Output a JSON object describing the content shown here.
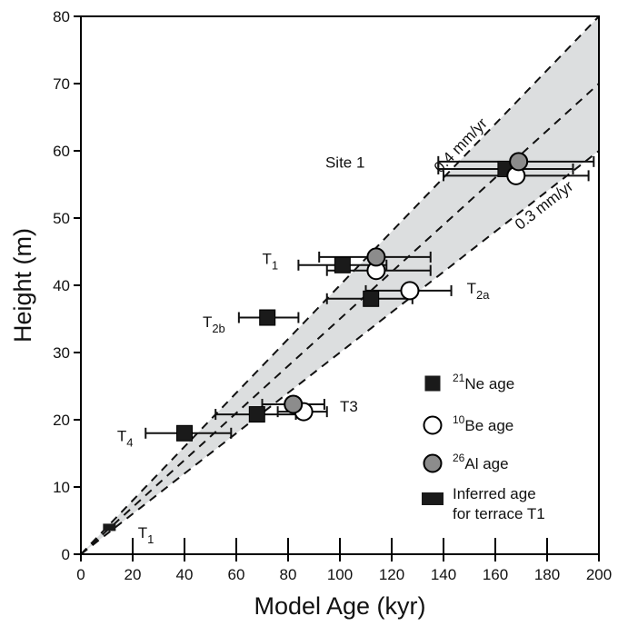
{
  "chart_data": {
    "type": "scatter",
    "xlabel": "Model Age (kyr)",
    "ylabel": "Height (m)",
    "xlim": [
      0,
      200
    ],
    "ylim": [
      0,
      80
    ],
    "xticks": [
      0,
      20,
      40,
      60,
      80,
      100,
      120,
      140,
      160,
      180,
      200
    ],
    "yticks": [
      0,
      10,
      20,
      30,
      40,
      50,
      60,
      70,
      80
    ],
    "grid": false,
    "legend_position": "bottom-right",
    "shaded_band": {
      "slope_min": 0.3,
      "slope_max": 0.4,
      "color": "#dcdedf"
    },
    "rate_lines": [
      {
        "slope": 0.4,
        "label": "0.4 mm/yr"
      },
      {
        "slope": 0.35,
        "label": ""
      },
      {
        "slope": 0.3,
        "label": "0.3 mm/yr"
      }
    ],
    "series": [
      {
        "name": "21Ne age",
        "sup": "21",
        "rest": "Ne age",
        "marker": "square",
        "color": "#1a1a1a",
        "points": [
          {
            "x": 164,
            "y": 57.3,
            "xerr": [
              138,
              190
            ]
          },
          {
            "x": 101,
            "y": 43,
            "xerr": [
              84,
              118
            ]
          },
          {
            "x": 112,
            "y": 38,
            "xerr": [
              95,
              128
            ]
          },
          {
            "x": 72,
            "y": 35.2,
            "xerr": [
              61,
              84
            ]
          },
          {
            "x": 68,
            "y": 20.8,
            "xerr": [
              52,
              83
            ]
          },
          {
            "x": 40,
            "y": 18,
            "xerr": [
              25,
              58
            ]
          }
        ]
      },
      {
        "name": "10Be age",
        "sup": "10",
        "rest": "Be age",
        "marker": "circle",
        "color": "#ffffff",
        "points": [
          {
            "x": 168,
            "y": 56.3,
            "xerr": [
              140,
              196
            ]
          },
          {
            "x": 114,
            "y": 42.2,
            "xerr": [
              95,
              135
            ]
          },
          {
            "x": 127,
            "y": 39.2,
            "xerr": [
              110,
              143
            ]
          },
          {
            "x": 86,
            "y": 21.2,
            "xerr": [
              76,
              95
            ]
          }
        ]
      },
      {
        "name": "26Al age",
        "sup": "26",
        "rest": "Al age",
        "marker": "circle",
        "color": "#8c8c8c",
        "points": [
          {
            "x": 169,
            "y": 58.4,
            "xerr": [
              138,
              198
            ]
          },
          {
            "x": 114,
            "y": 44.2,
            "xerr": [
              92,
              135
            ]
          },
          {
            "x": 82,
            "y": 22.3,
            "xerr": [
              70,
              94
            ]
          }
        ]
      },
      {
        "name": "Inferred age for terrace T1",
        "line1": "Inferred age",
        "line2": "for terrace T1",
        "marker": "rect",
        "color": "#1a1a1a",
        "points": [
          {
            "x": 11,
            "y": 4
          }
        ]
      }
    ],
    "annotations": [
      {
        "text": "Site 1",
        "x": 102,
        "y": 57.5,
        "sub": "",
        "anchor": "middle"
      },
      {
        "text": "T",
        "sub": "1",
        "x": 70,
        "y": 43.2,
        "anchor": "start"
      },
      {
        "text": "T",
        "sub": "2a",
        "x": 149,
        "y": 38.8,
        "anchor": "start"
      },
      {
        "text": "T",
        "sub": "2b",
        "x": 47,
        "y": 33.8,
        "anchor": "start"
      },
      {
        "text": "T3",
        "x": 100,
        "y": 21.2,
        "sub": "",
        "anchor": "start"
      },
      {
        "text": "T",
        "sub": "4",
        "x": 14,
        "y": 16.8,
        "anchor": "start"
      },
      {
        "text": "T",
        "sub": "1",
        "x": 22,
        "y": 2.4,
        "anchor": "start"
      }
    ],
    "bottom_tick_marks_x": [
      20,
      40,
      60,
      80,
      100,
      120,
      140,
      160,
      180
    ]
  }
}
